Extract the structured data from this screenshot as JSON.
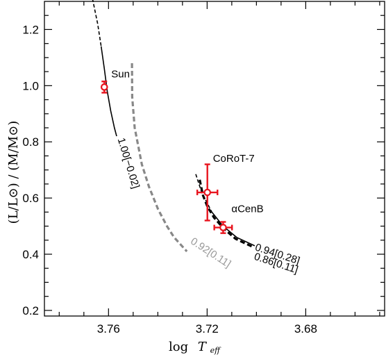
{
  "chart_data": {
    "type": "line",
    "xlabel_prefix": "log",
    "xlabel_var": "T",
    "xlabel_sub": "eff",
    "ylabel": "(L/L⊙) / (M/M⊙)",
    "xlim": [
      3.786,
      3.648
    ],
    "ylim": [
      0.18,
      1.3
    ],
    "x_axis_reversed": true,
    "xticks": [
      "3.76",
      "3.72",
      "3.68"
    ],
    "xtick_values": [
      3.76,
      3.72,
      3.68
    ],
    "yticks": [
      "0.2",
      "0.4",
      "0.6",
      "0.8",
      "1.0",
      "1.2"
    ],
    "ytick_values": [
      0.2,
      0.4,
      0.6,
      0.8,
      1.0,
      1.2
    ],
    "grid": false,
    "series": [
      {
        "name": "1.00[−0.02]",
        "color": "#000000",
        "points": [
          [
            3.7665,
            1.31
          ],
          [
            3.7644,
            1.22
          ],
          [
            3.763,
            1.14
          ],
          [
            3.7617,
            1.06
          ],
          [
            3.7605,
            0.98
          ],
          [
            3.7591,
            0.91
          ],
          [
            3.7576,
            0.85
          ],
          [
            3.7567,
            0.82
          ]
        ],
        "dashed_until_index": 2
      },
      {
        "name": "0.92[0.11]",
        "color": "#888888",
        "points": [
          [
            3.7505,
            1.08
          ],
          [
            3.7504,
            0.96
          ],
          [
            3.7494,
            0.85
          ],
          [
            3.7465,
            0.72
          ],
          [
            3.7436,
            0.64
          ],
          [
            3.7399,
            0.56
          ],
          [
            3.7363,
            0.5
          ],
          [
            3.7334,
            0.46
          ],
          [
            3.7282,
            0.41
          ]
        ],
        "style": "dashed"
      },
      {
        "name": "0.94[0.28]",
        "color": "#000000",
        "points": [
          [
            3.7246,
            0.685
          ],
          [
            3.7222,
            0.62
          ],
          [
            3.7181,
            0.55
          ],
          [
            3.7135,
            0.5
          ],
          [
            3.708,
            0.46
          ],
          [
            3.7007,
            0.43
          ]
        ],
        "dashed_until_index": 2
      },
      {
        "name": "0.86[0.11]",
        "color": "#000000",
        "points": [
          [
            3.723,
            0.665
          ],
          [
            3.7217,
            0.61
          ],
          [
            3.7199,
            0.57
          ],
          [
            3.7172,
            0.53
          ],
          [
            3.7131,
            0.49
          ],
          [
            3.7085,
            0.455
          ],
          [
            3.7012,
            0.425
          ]
        ],
        "style": "heavy-dashed"
      }
    ],
    "stars": [
      {
        "name": "Sun",
        "x": 3.7617,
        "y": 0.995,
        "xerr": 0,
        "yerr": 0.02
      },
      {
        "name": "CoRoT-7",
        "x": 3.7199,
        "y": 0.62,
        "xerr": 0.0041,
        "yerr": 0.1
      },
      {
        "name": "αCenB",
        "x": 3.7135,
        "y": 0.495,
        "xerr": 0.0036,
        "yerr": 0.02
      }
    ],
    "marker_color": "#e8141e"
  }
}
